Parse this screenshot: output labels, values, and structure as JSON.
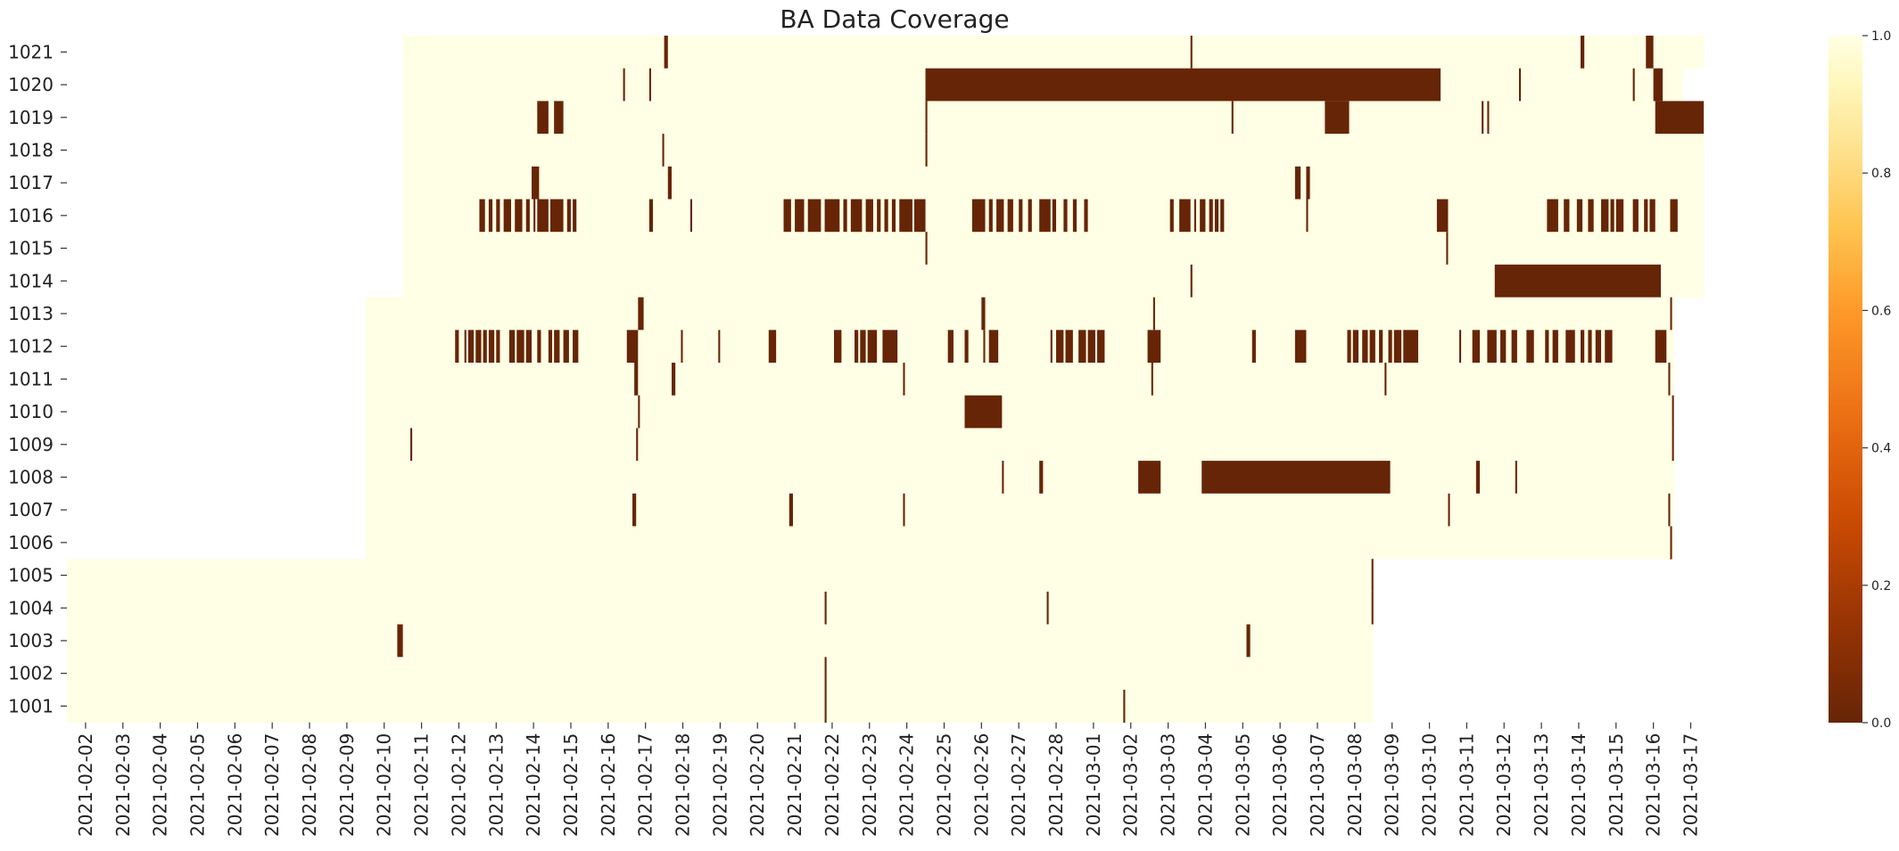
{
  "chart_data": {
    "type": "heatmap",
    "title": "BA Data Coverage",
    "xlabel": "",
    "ylabel": "",
    "x_tick_labels": [
      "2021-02-02",
      "2021-02-03",
      "2021-02-04",
      "2021-02-05",
      "2021-02-06",
      "2021-02-07",
      "2021-02-08",
      "2021-02-09",
      "2021-02-10",
      "2021-02-11",
      "2021-02-12",
      "2021-02-13",
      "2021-02-14",
      "2021-02-15",
      "2021-02-16",
      "2021-02-17",
      "2021-02-18",
      "2021-02-19",
      "2021-02-20",
      "2021-02-21",
      "2021-02-22",
      "2021-02-23",
      "2021-02-24",
      "2021-02-25",
      "2021-02-26",
      "2021-02-27",
      "2021-02-28",
      "2021-03-01",
      "2021-03-02",
      "2021-03-03",
      "2021-03-04",
      "2021-03-05",
      "2021-03-06",
      "2021-03-07",
      "2021-03-08",
      "2021-03-09",
      "2021-03-10",
      "2021-03-11",
      "2021-03-12",
      "2021-03-13",
      "2021-03-14",
      "2021-03-15",
      "2021-03-16",
      "2021-03-17"
    ],
    "x_range_days": [
      0,
      45.3
    ],
    "rows": [
      "1021",
      "1020",
      "1019",
      "1018",
      "1017",
      "1016",
      "1015",
      "1014",
      "1013",
      "1012",
      "1011",
      "1010",
      "1009",
      "1008",
      "1007",
      "1006",
      "1005",
      "1004",
      "1003",
      "1002",
      "1001"
    ],
    "colorbar": {
      "vmin": 0.0,
      "vmax": 1.0,
      "ticks": [
        "0.0",
        "0.2",
        "0.4",
        "0.6",
        "0.8",
        "1.0"
      ],
      "colormap": "YlOrBr_r",
      "color_low": "#662506",
      "color_high": "#ffffe5"
    },
    "series": [
      {
        "name": "1021",
        "coverage": [
          9.0,
          43.85
        ],
        "gaps": [
          [
            16.0,
            16.1
          ],
          [
            30.1,
            30.15
          ],
          [
            40.55,
            40.65
          ],
          [
            42.3,
            42.5
          ]
        ]
      },
      {
        "name": "1020",
        "coverage": [
          9.0,
          43.3
        ],
        "gaps": [
          [
            14.9,
            14.95
          ],
          [
            15.6,
            15.65
          ],
          [
            23.0,
            36.8
          ],
          [
            38.9,
            38.95
          ],
          [
            41.95,
            42.0
          ],
          [
            42.5,
            42.75
          ]
        ]
      },
      {
        "name": "1019",
        "coverage": [
          9.0,
          43.85
        ],
        "gaps": [
          [
            12.6,
            12.9
          ],
          [
            13.05,
            13.3
          ],
          [
            23.0,
            23.05
          ],
          [
            31.2,
            31.25
          ],
          [
            33.7,
            34.35
          ],
          [
            37.9,
            37.95
          ],
          [
            38.05,
            38.1
          ],
          [
            42.55,
            43.85
          ]
        ]
      },
      {
        "name": "1018",
        "coverage": [
          9.0,
          43.85
        ],
        "gaps": [
          [
            15.95,
            16.0
          ],
          [
            23.0,
            23.05
          ]
        ]
      },
      {
        "name": "1017",
        "coverage": [
          9.0,
          43.85
        ],
        "gaps": [
          [
            12.45,
            12.65
          ],
          [
            16.1,
            16.2
          ],
          [
            32.9,
            33.05
          ],
          [
            33.2,
            33.3
          ]
        ]
      },
      {
        "name": "1016",
        "coverage": [
          9.0,
          43.85
        ],
        "gaps": [
          [
            11.05,
            11.2
          ],
          [
            11.3,
            11.4
          ],
          [
            11.5,
            11.6
          ],
          [
            11.7,
            11.9
          ],
          [
            12.0,
            12.2
          ],
          [
            12.3,
            12.4
          ],
          [
            12.5,
            12.55
          ],
          [
            12.6,
            12.9
          ],
          [
            12.95,
            13.3
          ],
          [
            13.4,
            13.5
          ],
          [
            13.55,
            13.65
          ],
          [
            15.6,
            15.7
          ],
          [
            16.7,
            16.75
          ],
          [
            19.2,
            19.4
          ],
          [
            19.5,
            19.75
          ],
          [
            19.85,
            20.2
          ],
          [
            20.3,
            20.7
          ],
          [
            20.8,
            20.9
          ],
          [
            21.0,
            21.3
          ],
          [
            21.4,
            21.6
          ],
          [
            21.7,
            21.8
          ],
          [
            21.9,
            22.0
          ],
          [
            22.1,
            22.2
          ],
          [
            22.3,
            22.65
          ],
          [
            22.7,
            23.0
          ],
          [
            24.25,
            24.6
          ],
          [
            24.7,
            24.8
          ],
          [
            24.9,
            25.1
          ],
          [
            25.2,
            25.35
          ],
          [
            25.5,
            25.6
          ],
          [
            25.75,
            25.85
          ],
          [
            26.05,
            26.35
          ],
          [
            26.4,
            26.5
          ],
          [
            26.7,
            26.8
          ],
          [
            26.95,
            27.05
          ],
          [
            27.25,
            27.35
          ],
          [
            29.55,
            29.65
          ],
          [
            29.8,
            30.1
          ],
          [
            30.2,
            30.25
          ],
          [
            30.35,
            30.5
          ],
          [
            30.6,
            30.7
          ],
          [
            30.75,
            30.85
          ],
          [
            30.9,
            31.0
          ],
          [
            33.2,
            33.25
          ],
          [
            36.7,
            37.0
          ],
          [
            39.65,
            39.95
          ],
          [
            40.1,
            40.25
          ],
          [
            40.45,
            40.6
          ],
          [
            40.75,
            40.9
          ],
          [
            41.1,
            41.3
          ],
          [
            41.35,
            41.45
          ],
          [
            41.5,
            41.7
          ],
          [
            41.95,
            42.1
          ],
          [
            42.25,
            42.35
          ],
          [
            42.4,
            42.55
          ],
          [
            42.95,
            43.15
          ]
        ]
      },
      {
        "name": "1015",
        "coverage": [
          9.0,
          43.85
        ],
        "gaps": [
          [
            23.0,
            23.05
          ],
          [
            36.95,
            37.0
          ]
        ]
      },
      {
        "name": "1014",
        "coverage": [
          9.0,
          43.85
        ],
        "gaps": [
          [
            30.1,
            30.15
          ],
          [
            38.25,
            42.7
          ]
        ]
      },
      {
        "name": "1013",
        "coverage": [
          8.0,
          43.05
        ],
        "gaps": [
          [
            15.3,
            15.45
          ],
          [
            24.5,
            24.6
          ],
          [
            29.1,
            29.15
          ],
          [
            42.95,
            43.0
          ]
        ]
      },
      {
        "name": "1012",
        "coverage": [
          8.0,
          43.05
        ],
        "gaps": [
          [
            10.4,
            10.5
          ],
          [
            10.65,
            10.7
          ],
          [
            10.75,
            10.9
          ],
          [
            10.95,
            11.1
          ],
          [
            11.15,
            11.25
          ],
          [
            11.3,
            11.45
          ],
          [
            11.5,
            11.6
          ],
          [
            11.85,
            12.0
          ],
          [
            12.05,
            12.25
          ],
          [
            12.3,
            12.45
          ],
          [
            12.6,
            12.7
          ],
          [
            12.9,
            13.0
          ],
          [
            13.05,
            13.2
          ],
          [
            13.3,
            13.45
          ],
          [
            13.55,
            13.7
          ],
          [
            15.0,
            15.3
          ],
          [
            16.45,
            16.5
          ],
          [
            17.45,
            17.5
          ],
          [
            18.8,
            19.0
          ],
          [
            20.55,
            20.75
          ],
          [
            21.1,
            21.2
          ],
          [
            21.25,
            21.4
          ],
          [
            21.45,
            21.7
          ],
          [
            21.85,
            22.25
          ],
          [
            23.6,
            23.75
          ],
          [
            24.05,
            24.15
          ],
          [
            24.55,
            24.6
          ],
          [
            24.7,
            24.95
          ],
          [
            26.35,
            26.4
          ],
          [
            26.5,
            26.7
          ],
          [
            26.75,
            26.95
          ],
          [
            27.1,
            27.3
          ],
          [
            27.35,
            27.55
          ],
          [
            27.6,
            27.8
          ],
          [
            28.95,
            29.3
          ],
          [
            31.75,
            31.85
          ],
          [
            32.9,
            33.2
          ],
          [
            34.3,
            34.4
          ],
          [
            34.45,
            34.6
          ],
          [
            34.7,
            34.85
          ],
          [
            34.9,
            35.05
          ],
          [
            35.15,
            35.25
          ],
          [
            35.4,
            35.5
          ],
          [
            35.55,
            35.75
          ],
          [
            35.8,
            36.2
          ],
          [
            37.3,
            37.35
          ],
          [
            37.65,
            37.85
          ],
          [
            38.05,
            38.3
          ],
          [
            38.4,
            38.55
          ],
          [
            38.7,
            38.85
          ],
          [
            39.1,
            39.3
          ],
          [
            39.6,
            39.7
          ],
          [
            39.8,
            39.95
          ],
          [
            40.15,
            40.4
          ],
          [
            40.55,
            40.65
          ],
          [
            40.75,
            40.85
          ],
          [
            40.95,
            41.1
          ],
          [
            41.2,
            41.4
          ],
          [
            42.55,
            42.85
          ]
        ]
      },
      {
        "name": "1011",
        "coverage": [
          8.0,
          43.05
        ],
        "gaps": [
          [
            15.2,
            15.3
          ],
          [
            16.2,
            16.3
          ],
          [
            22.4,
            22.45
          ],
          [
            29.05,
            29.1
          ],
          [
            35.3,
            35.35
          ],
          [
            42.9,
            42.95
          ]
        ]
      },
      {
        "name": "1010",
        "coverage": [
          8.0,
          43.05
        ],
        "gaps": [
          [
            15.3,
            15.35
          ],
          [
            24.05,
            25.05
          ],
          [
            43.0,
            43.05
          ]
        ]
      },
      {
        "name": "1009",
        "coverage": [
          8.0,
          43.05
        ],
        "gaps": [
          [
            9.2,
            9.25
          ],
          [
            15.25,
            15.3
          ],
          [
            43.0,
            43.05
          ]
        ]
      },
      {
        "name": "1008",
        "coverage": [
          8.0,
          43.05
        ],
        "gaps": [
          [
            25.05,
            25.1
          ],
          [
            26.05,
            26.15
          ],
          [
            28.7,
            29.3
          ],
          [
            30.4,
            35.45
          ],
          [
            37.75,
            37.85
          ],
          [
            38.8,
            38.85
          ]
        ]
      },
      {
        "name": "1007",
        "coverage": [
          8.0,
          43.05
        ],
        "gaps": [
          [
            15.15,
            15.25
          ],
          [
            19.35,
            19.45
          ],
          [
            22.4,
            22.45
          ],
          [
            37.0,
            37.05
          ],
          [
            42.9,
            42.95
          ]
        ]
      },
      {
        "name": "1006",
        "coverage": [
          8.0,
          43.05
        ],
        "gaps": [
          [
            42.95,
            43.0
          ]
        ]
      },
      {
        "name": "1005",
        "coverage": [
          0.0,
          35.0
        ],
        "gaps": [
          [
            34.95,
            35.0
          ]
        ]
      },
      {
        "name": "1004",
        "coverage": [
          0.0,
          35.0
        ],
        "gaps": [
          [
            20.3,
            20.35
          ],
          [
            26.25,
            26.3
          ],
          [
            34.95,
            35.0
          ]
        ]
      },
      {
        "name": "1003",
        "coverage": [
          0.0,
          35.0
        ],
        "gaps": [
          [
            8.85,
            9.0
          ],
          [
            31.6,
            31.7
          ]
        ]
      },
      {
        "name": "1002",
        "coverage": [
          0.0,
          35.0
        ],
        "gaps": [
          [
            20.3,
            20.35
          ]
        ]
      },
      {
        "name": "1001",
        "coverage": [
          0.0,
          35.0
        ],
        "gaps": [
          [
            20.3,
            20.35
          ],
          [
            28.3,
            28.35
          ]
        ]
      }
    ]
  }
}
